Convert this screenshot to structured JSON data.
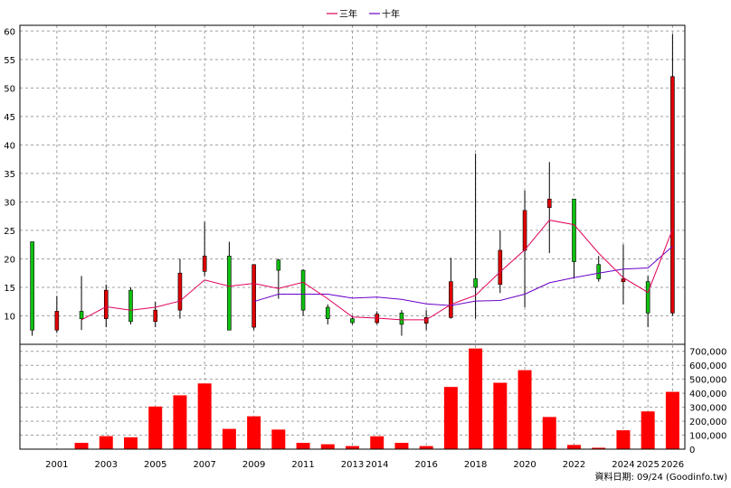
{
  "chart_data": {
    "type": "candlestick",
    "legend": [
      {
        "name": "三年",
        "color": "#e0005a"
      },
      {
        "name": "十年",
        "color": "#6a00c8"
      }
    ],
    "years": [
      2000,
      2001,
      2002,
      2003,
      2004,
      2005,
      2006,
      2007,
      2008,
      2009,
      2010,
      2011,
      2012,
      2013,
      2014,
      2015,
      2016,
      2017,
      2018,
      2019,
      2020,
      2021,
      2022,
      2023,
      2024,
      2025,
      2026
    ],
    "x_tick_labels": [
      "2001",
      "2003",
      "2005",
      "2007",
      "2009",
      "2011",
      "2013",
      "2014",
      "2016",
      "2018",
      "2020",
      "2022",
      "2024",
      "2025",
      "2026"
    ],
    "x_tick_years": [
      2001,
      2003,
      2005,
      2007,
      2009,
      2011,
      2013,
      2014,
      2016,
      2018,
      2020,
      2022,
      2024,
      2025,
      2026
    ],
    "price_ylim": [
      5,
      61
    ],
    "price_ticks": [
      10,
      15,
      20,
      25,
      30,
      35,
      40,
      45,
      50,
      55,
      60
    ],
    "candles": [
      {
        "year": 2000,
        "open": 23.0,
        "high": 23.0,
        "low": 6.5,
        "close": 7.5
      },
      {
        "year": 2001,
        "open": 7.5,
        "high": 13.5,
        "low": 7.0,
        "close": 10.8
      },
      {
        "year": 2002,
        "open": 10.8,
        "high": 17.0,
        "low": 7.5,
        "close": 9.5
      },
      {
        "year": 2003,
        "open": 9.5,
        "high": 15.5,
        "low": 8.0,
        "close": 14.5
      },
      {
        "year": 2004,
        "open": 14.5,
        "high": 15.0,
        "low": 8.5,
        "close": 9.0
      },
      {
        "year": 2005,
        "open": 9.0,
        "high": 12.5,
        "low": 8.0,
        "close": 11.0
      },
      {
        "year": 2006,
        "open": 11.0,
        "high": 20.0,
        "low": 9.5,
        "close": 17.5
      },
      {
        "year": 2007,
        "open": 17.8,
        "high": 26.5,
        "low": 17.0,
        "close": 20.5
      },
      {
        "year": 2008,
        "open": 20.5,
        "high": 23.0,
        "low": 7.5,
        "close": 7.5
      },
      {
        "year": 2009,
        "open": 8.0,
        "high": 19.0,
        "low": 7.5,
        "close": 19.0
      },
      {
        "year": 2010,
        "open": 19.8,
        "high": 20.0,
        "low": 13.0,
        "close": 18.0
      },
      {
        "year": 2011,
        "open": 18.0,
        "high": 18.2,
        "low": 10.0,
        "close": 11.0
      },
      {
        "year": 2012,
        "open": 11.5,
        "high": 12.0,
        "low": 8.5,
        "close": 9.5
      },
      {
        "year": 2013,
        "open": 9.5,
        "high": 10.0,
        "low": 8.5,
        "close": 8.8
      },
      {
        "year": 2014,
        "open": 8.8,
        "high": 10.8,
        "low": 8.5,
        "close": 10.3
      },
      {
        "year": 2015,
        "open": 10.5,
        "high": 11.0,
        "low": 6.5,
        "close": 8.5
      },
      {
        "year": 2016,
        "open": 8.7,
        "high": 11.0,
        "low": 7.5,
        "close": 9.7
      },
      {
        "year": 2017,
        "open": 9.7,
        "high": 20.2,
        "low": 9.5,
        "close": 16.0
      },
      {
        "year": 2018,
        "open": 16.5,
        "high": 38.5,
        "low": 9.5,
        "close": 15.0
      },
      {
        "year": 2019,
        "open": 15.5,
        "high": 25.0,
        "low": 14.0,
        "close": 21.5
      },
      {
        "year": 2020,
        "open": 21.5,
        "high": 32.0,
        "low": 11.5,
        "close": 28.5
      },
      {
        "year": 2021,
        "open": 29.0,
        "high": 37.0,
        "low": 21.0,
        "close": 30.5
      },
      {
        "year": 2022,
        "open": 30.5,
        "high": 30.5,
        "low": 16.5,
        "close": 19.5
      },
      {
        "year": 2023,
        "open": 19.0,
        "high": 20.5,
        "low": 16.0,
        "close": 16.5
      },
      {
        "year": 2024,
        "open": 16.0,
        "high": 22.5,
        "low": 12.0,
        "close": 16.5
      },
      {
        "year": 2025,
        "open": 16.0,
        "high": 17.0,
        "low": 8.0,
        "close": 10.5
      },
      {
        "year": 2026,
        "open": 10.5,
        "high": 59.5,
        "low": 10.0,
        "close": 52.0
      }
    ],
    "ma3": {
      "years": [
        2002,
        2003,
        2004,
        2005,
        2006,
        2007,
        2008,
        2009,
        2010,
        2011,
        2012,
        2013,
        2014,
        2015,
        2016,
        2017,
        2018,
        2019,
        2020,
        2021,
        2022,
        2023,
        2024,
        2025,
        2026
      ],
      "values": [
        9.3,
        11.6,
        11.0,
        11.5,
        12.6,
        16.3,
        15.2,
        15.7,
        14.8,
        15.9,
        13.0,
        9.8,
        9.6,
        9.3,
        9.3,
        12.0,
        13.6,
        17.7,
        21.6,
        26.8,
        26.0,
        21.0,
        16.7,
        14.1,
        25.2
      ]
    },
    "ma10": {
      "years": [
        2009,
        2010,
        2011,
        2012,
        2013,
        2014,
        2015,
        2016,
        2017,
        2018,
        2019,
        2020,
        2021,
        2022,
        2023,
        2024,
        2025,
        2026
      ],
      "values": [
        12.5,
        13.8,
        13.8,
        13.8,
        13.1,
        13.3,
        12.9,
        12.1,
        11.8,
        12.6,
        12.7,
        13.8,
        15.8,
        16.7,
        17.5,
        18.2,
        18.4,
        22.2
      ]
    },
    "volume_ylim": [
      0,
      750000
    ],
    "volume_ticks": [
      0,
      100000,
      200000,
      300000,
      400000,
      500000,
      600000,
      700000
    ],
    "volume_tick_labels": [
      "0",
      "100,000",
      "200,000",
      "300,000",
      "400,000",
      "500,000",
      "600,000",
      "700,000"
    ],
    "volume": [
      {
        "year": 2001,
        "value": 3000
      },
      {
        "year": 2002,
        "value": 45000
      },
      {
        "year": 2003,
        "value": 93000
      },
      {
        "year": 2004,
        "value": 85000
      },
      {
        "year": 2005,
        "value": 305000
      },
      {
        "year": 2006,
        "value": 385000
      },
      {
        "year": 2007,
        "value": 470000
      },
      {
        "year": 2008,
        "value": 145000
      },
      {
        "year": 2009,
        "value": 235000
      },
      {
        "year": 2010,
        "value": 140000
      },
      {
        "year": 2011,
        "value": 45000
      },
      {
        "year": 2012,
        "value": 35000
      },
      {
        "year": 2013,
        "value": 22000
      },
      {
        "year": 2014,
        "value": 92000
      },
      {
        "year": 2015,
        "value": 45000
      },
      {
        "year": 2016,
        "value": 22000
      },
      {
        "year": 2017,
        "value": 445000
      },
      {
        "year": 2018,
        "value": 720000
      },
      {
        "year": 2019,
        "value": 475000
      },
      {
        "year": 2020,
        "value": 565000
      },
      {
        "year": 2021,
        "value": 230000
      },
      {
        "year": 2022,
        "value": 30000
      },
      {
        "year": 2023,
        "value": 10000
      },
      {
        "year": 2024,
        "value": 135000
      },
      {
        "year": 2025,
        "value": 270000
      },
      {
        "year": 2026,
        "value": 410000
      }
    ],
    "colors": {
      "up": "#e00000",
      "down": "#10c010",
      "volume": "#ff0000",
      "grid": "#a0a0a0"
    },
    "grid": true,
    "legend_position": "top-center",
    "footer": "資料日期: 09/24 (Goodinfo.tw)"
  }
}
